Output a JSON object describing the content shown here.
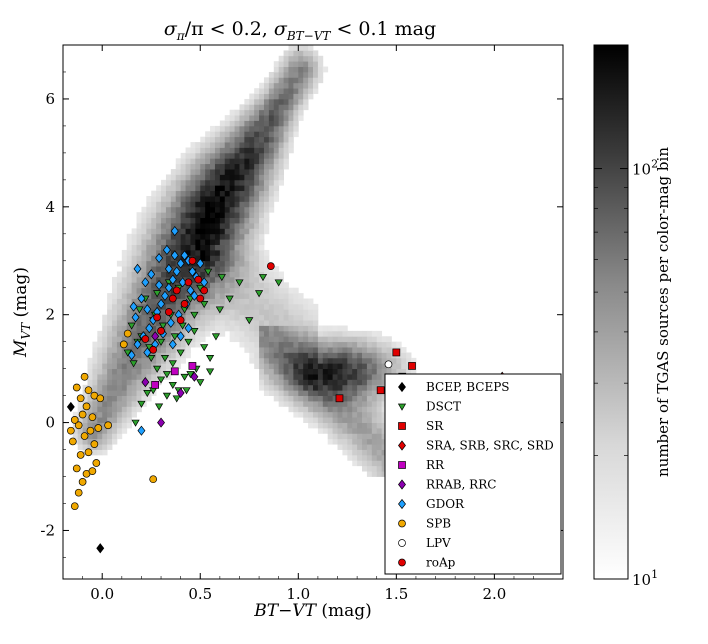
{
  "chart_data": {
    "type": "scatter",
    "title": "σ_π/π < 0.2, σ_BT−VT < 0.1 mag",
    "title_parts": {
      "sigma": "σ",
      "pi": "π",
      "sub_bt": "BT−VT",
      "slash_pi": "/π < 0.2, ",
      "tail": " < 0.1 mag"
    },
    "xlabel": "BT − VT (mag)",
    "ylabel": "M_VT (mag)",
    "xlabel_parts": {
      "main": "BT−VT",
      "unit": " (mag)"
    },
    "ylabel_parts": {
      "main": "M",
      "sub": "VT",
      "unit": " (mag)"
    },
    "xlim": [
      -0.2,
      2.35
    ],
    "ylim": [
      7.0,
      -2.9
    ],
    "xticks": [
      {
        "v": 0.0,
        "label": "0.0"
      },
      {
        "v": 0.5,
        "label": "0.5"
      },
      {
        "v": 1.0,
        "label": "1.0"
      },
      {
        "v": 1.5,
        "label": "1.5"
      },
      {
        "v": 2.0,
        "label": "2.0"
      }
    ],
    "yticks": [
      {
        "v": -2,
        "label": "-2"
      },
      {
        "v": 0,
        "label": "0"
      },
      {
        "v": 2,
        "label": "2"
      },
      {
        "v": 4,
        "label": "4"
      },
      {
        "v": 6,
        "label": "6"
      }
    ],
    "colorbar": {
      "label": "number of TGAS sources per color-mag bin",
      "scale": "log",
      "range": [
        10,
        200
      ],
      "ticks": [
        {
          "v": 10,
          "label": "10",
          "sup": "1"
        },
        {
          "v": 100,
          "label": "10",
          "sup": "2"
        }
      ],
      "cmap": "grays"
    },
    "background_density": {
      "description": "2D histogram of TGAS sources",
      "main_sequence": [
        [
          -0.05,
          -0.2
        ],
        [
          0.1,
          0.9
        ],
        [
          0.25,
          1.9
        ],
        [
          0.4,
          2.9
        ],
        [
          0.5,
          3.5
        ],
        [
          0.6,
          4.2
        ],
        [
          0.75,
          5.0
        ],
        [
          0.9,
          5.9
        ],
        [
          1.0,
          6.5
        ]
      ],
      "giant_clump": [
        1.2,
        0.9
      ]
    },
    "legend": {
      "position": "lower-right"
    },
    "series": [
      {
        "name": "BCEP, BCEPS",
        "marker": "diamond",
        "color": "#000000",
        "points": [
          [
            -0.01,
            -2.33
          ],
          [
            -0.16,
            0.29
          ]
        ]
      },
      {
        "name": "DSCT",
        "marker": "triangle-down",
        "color": "#2ca02c",
        "points": [
          [
            0.17,
            0.0
          ],
          [
            0.2,
            0.35
          ],
          [
            0.23,
            0.55
          ],
          [
            0.26,
            0.6
          ],
          [
            0.3,
            0.8
          ],
          [
            0.33,
            0.5
          ],
          [
            0.36,
            0.7
          ],
          [
            0.39,
            0.6
          ],
          [
            0.42,
            0.85
          ],
          [
            0.45,
            0.9
          ],
          [
            0.48,
            1.0
          ],
          [
            0.28,
            1.0
          ],
          [
            0.32,
            1.2
          ],
          [
            0.36,
            1.1
          ],
          [
            0.4,
            1.3
          ],
          [
            0.44,
            1.5
          ],
          [
            0.24,
            1.4
          ],
          [
            0.2,
            1.6
          ],
          [
            0.15,
            1.8
          ],
          [
            0.19,
            2.1
          ],
          [
            0.26,
            1.9
          ],
          [
            0.31,
            1.8
          ],
          [
            0.35,
            2.0
          ],
          [
            0.41,
            1.8
          ],
          [
            0.47,
            1.7
          ],
          [
            0.52,
            1.4
          ],
          [
            0.55,
            1.2
          ],
          [
            0.58,
            1.6
          ],
          [
            0.6,
            2.1
          ],
          [
            0.65,
            2.3
          ],
          [
            0.7,
            2.6
          ],
          [
            0.8,
            2.4
          ],
          [
            0.82,
            2.7
          ],
          [
            0.9,
            2.6
          ],
          [
            0.75,
            1.9
          ],
          [
            0.22,
            2.3
          ],
          [
            0.28,
            2.4
          ],
          [
            0.34,
            2.6
          ],
          [
            0.39,
            2.5
          ],
          [
            0.45,
            2.3
          ],
          [
            0.5,
            2.5
          ],
          [
            0.54,
            2.8
          ],
          [
            0.13,
            1.3
          ],
          [
            0.16,
            1.1
          ],
          [
            0.38,
            0.45
          ],
          [
            0.43,
            0.6
          ],
          [
            0.5,
            0.75
          ],
          [
            0.55,
            0.95
          ],
          [
            0.3,
            1.5
          ],
          [
            0.27,
            2.0
          ],
          [
            0.37,
            1.6
          ],
          [
            0.42,
            2.1
          ],
          [
            0.47,
            2.0
          ],
          [
            0.18,
            1.5
          ],
          [
            0.25,
            1.2
          ],
          [
            0.33,
            0.9
          ],
          [
            0.29,
            0.3
          ],
          [
            0.52,
            2.2
          ],
          [
            0.61,
            2.7
          ],
          [
            0.46,
            2.8
          ]
        ]
      },
      {
        "name": "SR",
        "marker": "square",
        "color": "#e00000",
        "points": [
          [
            1.21,
            0.45
          ],
          [
            1.42,
            0.6
          ],
          [
            1.5,
            1.3
          ],
          [
            1.58,
            1.05
          ],
          [
            1.53,
            0.85
          ],
          [
            1.72,
            0.0
          ],
          [
            1.86,
            -1.25
          ],
          [
            1.95,
            -1.1
          ],
          [
            2.02,
            -0.6
          ],
          [
            2.08,
            -0.8
          ],
          [
            1.9,
            -0.4
          ],
          [
            1.8,
            0.1
          ],
          [
            1.96,
            0.2
          ],
          [
            2.05,
            0.15
          ],
          [
            2.12,
            -0.2
          ],
          [
            1.7,
            -0.6
          ],
          [
            1.75,
            -0.9
          ],
          [
            1.82,
            -0.8
          ],
          [
            1.91,
            0.05
          ],
          [
            2.0,
            -0.9
          ]
        ]
      },
      {
        "name": "SRA, SRB, SRC, SRD",
        "marker": "diamond",
        "color": "#e00000",
        "points": [
          [
            2.0,
            -1.9
          ],
          [
            2.05,
            -1.7
          ],
          [
            1.97,
            -1.45
          ],
          [
            2.1,
            -1.2
          ],
          [
            1.65,
            -0.45
          ],
          [
            1.68,
            -0.7
          ],
          [
            1.72,
            -0.5
          ],
          [
            1.75,
            -0.3
          ],
          [
            1.78,
            -0.55
          ],
          [
            1.8,
            -0.3
          ],
          [
            1.83,
            -0.7
          ],
          [
            1.85,
            -0.4
          ],
          [
            1.87,
            -0.6
          ],
          [
            1.89,
            -0.2
          ],
          [
            1.91,
            -0.8
          ],
          [
            1.93,
            -0.5
          ],
          [
            1.95,
            -0.7
          ],
          [
            1.97,
            -0.3
          ],
          [
            1.99,
            -0.95
          ],
          [
            2.01,
            -0.4
          ],
          [
            2.03,
            -1.0
          ],
          [
            2.05,
            -0.6
          ],
          [
            2.07,
            -0.2
          ],
          [
            2.09,
            -0.8
          ],
          [
            2.11,
            -0.45
          ],
          [
            2.13,
            -0.7
          ],
          [
            2.15,
            -0.3
          ],
          [
            2.18,
            -0.5
          ],
          [
            2.21,
            -0.45
          ],
          [
            1.52,
            -0.3
          ],
          [
            1.62,
            -0.05
          ],
          [
            1.7,
            0.2
          ],
          [
            1.78,
            0.4
          ],
          [
            1.84,
            0.5
          ],
          [
            1.88,
            0.7
          ],
          [
            1.92,
            0.45
          ],
          [
            1.96,
            0.55
          ],
          [
            2.0,
            0.65
          ],
          [
            2.04,
            0.85
          ],
          [
            1.59,
            0.05
          ],
          [
            1.47,
            0.7
          ],
          [
            1.74,
            0.55
          ],
          [
            1.81,
            0.2
          ],
          [
            1.69,
            0.25
          ],
          [
            1.66,
            -0.2
          ],
          [
            1.73,
            -0.15
          ],
          [
            1.86,
            -0.1
          ],
          [
            1.9,
            -1.1
          ],
          [
            1.94,
            -1.3
          ],
          [
            1.98,
            -0.05
          ],
          [
            2.06,
            -0.35
          ]
        ]
      },
      {
        "name": "RR",
        "marker": "square",
        "color": "#c000c0",
        "points": [
          [
            0.37,
            0.95
          ],
          [
            0.46,
            1.05
          ],
          [
            0.27,
            0.7
          ]
        ]
      },
      {
        "name": "RRAB, RRC",
        "marker": "diamond",
        "color": "#8b00b0",
        "points": [
          [
            0.3,
            0.0
          ],
          [
            0.27,
            1.6
          ],
          [
            0.4,
            0.55
          ],
          [
            0.22,
            0.75
          ],
          [
            0.47,
            0.85
          ]
        ]
      },
      {
        "name": "GDOR",
        "marker": "diamond",
        "color": "#1ea0ff",
        "points": [
          [
            0.2,
            -0.15
          ],
          [
            0.15,
            1.25
          ],
          [
            0.18,
            1.45
          ],
          [
            0.21,
            1.6
          ],
          [
            0.24,
            1.75
          ],
          [
            0.26,
            1.9
          ],
          [
            0.28,
            2.05
          ],
          [
            0.3,
            2.2
          ],
          [
            0.32,
            2.35
          ],
          [
            0.34,
            2.5
          ],
          [
            0.36,
            2.65
          ],
          [
            0.38,
            2.8
          ],
          [
            0.4,
            2.95
          ],
          [
            0.42,
            3.1
          ],
          [
            0.44,
            3.0
          ],
          [
            0.46,
            2.8
          ],
          [
            0.48,
            2.7
          ],
          [
            0.5,
            2.95
          ],
          [
            0.2,
            2.3
          ],
          [
            0.22,
            2.6
          ],
          [
            0.18,
            2.85
          ],
          [
            0.25,
            2.75
          ],
          [
            0.29,
            3.05
          ],
          [
            0.33,
            3.2
          ],
          [
            0.37,
            3.1
          ],
          [
            0.41,
            2.6
          ],
          [
            0.45,
            2.45
          ],
          [
            0.31,
            1.65
          ],
          [
            0.35,
            1.85
          ],
          [
            0.39,
            2.0
          ],
          [
            0.43,
            2.2
          ],
          [
            0.47,
            2.35
          ],
          [
            0.23,
            1.3
          ],
          [
            0.27,
            1.45
          ],
          [
            0.17,
            1.95
          ],
          [
            0.36,
            1.45
          ],
          [
            0.4,
            1.6
          ],
          [
            0.44,
            1.75
          ],
          [
            0.29,
            2.55
          ],
          [
            0.34,
            2.85
          ],
          [
            0.23,
            2.1
          ],
          [
            0.37,
            3.55
          ],
          [
            0.52,
            2.6
          ],
          [
            0.16,
            2.15
          ]
        ]
      },
      {
        "name": "SPB",
        "marker": "circle",
        "color": "#f0a800",
        "points": [
          [
            -0.14,
            -1.55
          ],
          [
            -0.12,
            -1.3
          ],
          [
            -0.1,
            -1.1
          ],
          [
            -0.13,
            -0.85
          ],
          [
            -0.08,
            -0.95
          ],
          [
            -0.05,
            -0.9
          ],
          [
            -0.03,
            -0.75
          ],
          [
            -0.11,
            -0.6
          ],
          [
            -0.15,
            -0.35
          ],
          [
            -0.07,
            -0.55
          ],
          [
            -0.04,
            -0.4
          ],
          [
            -0.09,
            -0.25
          ],
          [
            -0.12,
            -0.05
          ],
          [
            -0.06,
            -0.15
          ],
          [
            -0.02,
            -0.1
          ],
          [
            -0.1,
            0.15
          ],
          [
            -0.08,
            0.3
          ],
          [
            -0.05,
            0.1
          ],
          [
            -0.14,
            0.05
          ],
          [
            -0.11,
            0.45
          ],
          [
            -0.07,
            0.6
          ],
          [
            -0.09,
            0.85
          ],
          [
            -0.04,
            0.5
          ],
          [
            -0.16,
            -0.15
          ],
          [
            0.26,
            -1.05
          ],
          [
            0.13,
            1.65
          ],
          [
            0.11,
            1.45
          ],
          [
            0.03,
            -0.05
          ],
          [
            -0.01,
            0.45
          ],
          [
            -0.13,
            0.65
          ]
        ]
      },
      {
        "name": "LPV",
        "marker": "circle",
        "color": "#ffffff",
        "points": [
          [
            1.46,
            1.08
          ]
        ]
      },
      {
        "name": "roAp",
        "marker": "circle",
        "color": "#e00000",
        "points": [
          [
            0.26,
            1.35
          ],
          [
            0.3,
            1.7
          ],
          [
            0.34,
            2.05
          ],
          [
            0.38,
            2.45
          ],
          [
            0.42,
            2.2
          ],
          [
            0.44,
            2.6
          ],
          [
            0.49,
            2.65
          ],
          [
            0.52,
            2.45
          ],
          [
            0.28,
            1.95
          ],
          [
            0.36,
            2.3
          ],
          [
            0.22,
            1.55
          ],
          [
            0.4,
            1.9
          ],
          [
            0.86,
            2.9
          ],
          [
            0.46,
            3.0
          ],
          [
            0.5,
            2.3
          ]
        ]
      }
    ]
  }
}
